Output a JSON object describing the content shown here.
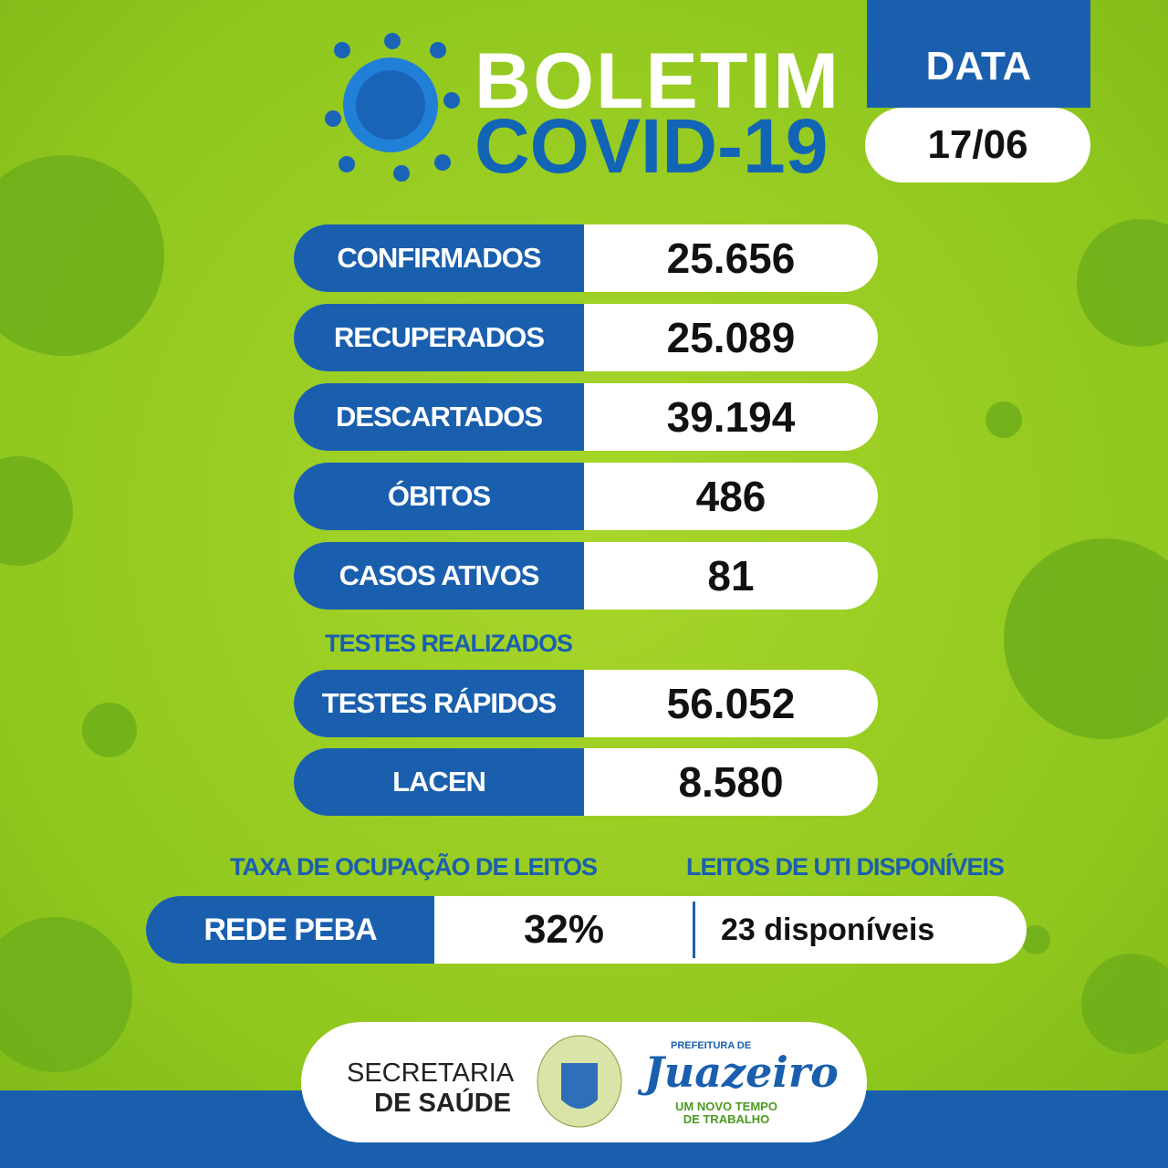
{
  "header": {
    "title_line1": "BOLETIM",
    "title_line2": "COVID-19",
    "date_label": "DATA",
    "date": "17/06"
  },
  "rows": [
    {
      "label": "CONFIRMADOS",
      "value": "25.656"
    },
    {
      "label": "RECUPERADOS",
      "value": "25.089"
    },
    {
      "label": "DESCARTADOS",
      "value": "39.194"
    },
    {
      "label": "ÓBITOS",
      "value": "486"
    },
    {
      "label": "CASOS ATIVOS",
      "value": "81"
    }
  ],
  "tests_heading": "TESTES REALIZADOS",
  "tests": [
    {
      "label": "TESTES RÁPIDOS",
      "value": "56.052"
    },
    {
      "label": "LACEN",
      "value": "8.580"
    }
  ],
  "beds": {
    "occupancy_heading": "TAXA DE OCUPAÇÃO DE LEITOS",
    "icu_heading": "LEITOS DE UTI DISPONÍVEIS",
    "network": "REDE PEBA",
    "occupancy": "32%",
    "icu": "23 disponíveis"
  },
  "footer": {
    "dept_line1": "SECRETARIA",
    "dept_line2": "DE SAÚDE",
    "brand_top": "PREFEITURA DE",
    "brand": "Juazeiro",
    "slogan_line1": "UM NOVO TEMPO",
    "slogan_line2": "DE TRABALHO"
  }
}
